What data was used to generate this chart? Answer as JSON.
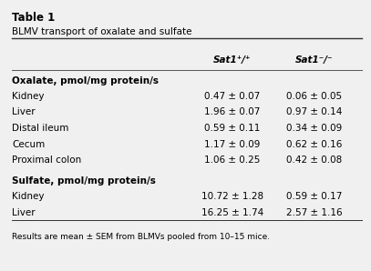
{
  "table_title_bold": "Table 1",
  "table_subtitle": "BLMV transport of oxalate and sulfate",
  "col_headers": [
    "Sat1⁺/⁺",
    "Sat1⁻/⁻"
  ],
  "sections": [
    {
      "section_header": "Oxalate, pmol/mg protein/s",
      "rows": [
        {
          "label": "Kidney",
          "wt": "0.47 ± 0.07",
          "ko": "0.06 ± 0.05"
        },
        {
          "label": "Liver",
          "wt": "1.96 ± 0.07",
          "ko": "0.97 ± 0.14"
        },
        {
          "label": "Distal ileum",
          "wt": "0.59 ± 0.11",
          "ko": "0.34 ± 0.09"
        },
        {
          "label": "Cecum",
          "wt": "1.17 ± 0.09",
          "ko": "0.62 ± 0.16"
        },
        {
          "label": "Proximal colon",
          "wt": "1.06 ± 0.25",
          "ko": "0.42 ± 0.08"
        }
      ]
    },
    {
      "section_header": "Sulfate, pmol/mg protein/s",
      "rows": [
        {
          "label": "Kidney",
          "wt": "10.72 ± 1.28",
          "ko": "0.59 ± 0.17"
        },
        {
          "label": "Liver",
          "wt": "16.25 ± 1.74",
          "ko": "2.57 ± 1.16"
        }
      ]
    }
  ],
  "footnote": "Results are mean ± SEM from BLMVs pooled from 10–15 mice.",
  "bg_color": "#f0f0f0",
  "text_color": "#000000",
  "header_line_color": "#555555"
}
